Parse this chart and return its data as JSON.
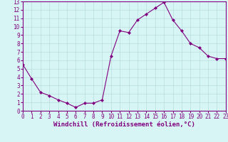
{
  "x": [
    0,
    1,
    2,
    3,
    4,
    5,
    6,
    7,
    8,
    9,
    10,
    11,
    12,
    13,
    14,
    15,
    16,
    17,
    18,
    19,
    20,
    21,
    22,
    23
  ],
  "y": [
    5.5,
    3.8,
    2.2,
    1.8,
    1.3,
    0.9,
    0.4,
    0.9,
    0.9,
    1.3,
    6.5,
    9.5,
    9.3,
    10.8,
    11.5,
    12.2,
    12.9,
    10.8,
    9.5,
    8.0,
    7.5,
    6.5,
    6.2,
    6.2
  ],
  "line_color": "#800080",
  "marker": "D",
  "marker_size": 2,
  "bg_color": "#d8f5f5",
  "grid_color": "#b8dede",
  "xlabel": "Windchill (Refroidissement éolien,°C)",
  "xlim": [
    0,
    23
  ],
  "ylim": [
    0,
    13
  ],
  "xticks": [
    0,
    1,
    2,
    3,
    4,
    5,
    6,
    7,
    8,
    9,
    10,
    11,
    12,
    13,
    14,
    15,
    16,
    17,
    18,
    19,
    20,
    21,
    22,
    23
  ],
  "yticks": [
    0,
    1,
    2,
    3,
    4,
    5,
    6,
    7,
    8,
    9,
    10,
    11,
    12,
    13
  ],
  "xlabel_fontsize": 6.5,
  "tick_fontsize": 5.5,
  "axis_color": "#800080"
}
